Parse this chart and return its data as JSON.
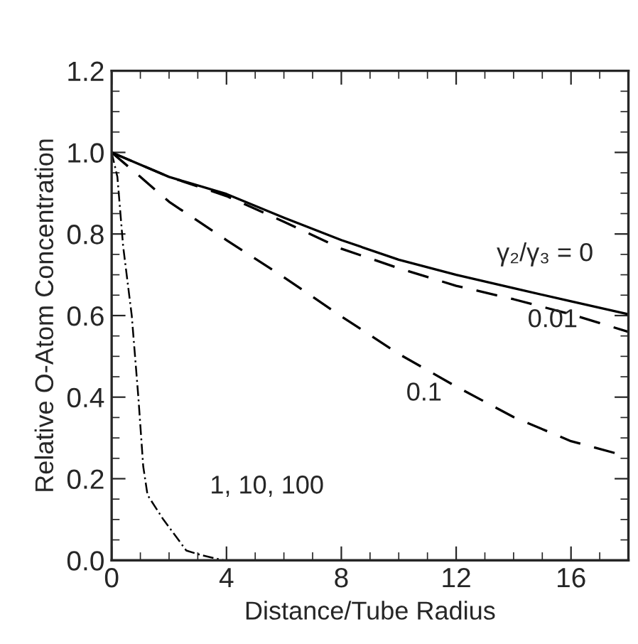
{
  "chart_data": {
    "type": "line",
    "xlabel": "Distance/Tube Radius",
    "ylabel": "Relative O-Atom Concentration",
    "xlim": [
      0,
      18
    ],
    "ylim": [
      0,
      1.2
    ],
    "xticks": [
      0,
      4,
      8,
      12,
      16
    ],
    "yticks": [
      {
        "value": 0,
        "label": "0.0"
      },
      0.2,
      0.4,
      0.6,
      0.8,
      {
        "value": 1,
        "label": "1.0"
      },
      1.2
    ],
    "grid": false,
    "legend": false,
    "series": [
      {
        "name": "γ₂/γ₃ = 0",
        "color": "#000000",
        "line_style": "solid",
        "x": [
          0,
          2,
          4,
          6,
          8,
          10,
          12,
          14,
          16,
          18
        ],
        "values": [
          1.0,
          0.94,
          0.898,
          0.84,
          0.785,
          0.737,
          0.7,
          0.667,
          0.635,
          0.603
        ]
      },
      {
        "name": "0.01",
        "color": "#000000",
        "line_style": "dashed",
        "x": [
          0,
          2,
          4,
          6,
          8,
          10,
          12,
          14,
          16,
          18
        ],
        "values": [
          1.0,
          0.94,
          0.893,
          0.83,
          0.764,
          0.716,
          0.673,
          0.64,
          0.603,
          0.56
        ]
      },
      {
        "name": "0.1",
        "color": "#000000",
        "line_style": "dashed",
        "x": [
          0,
          1,
          2,
          4,
          6,
          8,
          10,
          12,
          14,
          16,
          18
        ],
        "values": [
          1.0,
          0.94,
          0.879,
          0.785,
          0.694,
          0.598,
          0.506,
          0.426,
          0.351,
          0.292,
          0.254
        ]
      },
      {
        "name": "1, 10, 100",
        "color": "#000000",
        "line_style": "dashed",
        "x": [
          0,
          0.2,
          0.4,
          0.7,
          0.93,
          1.1,
          1.25,
          1.8,
          2.6,
          3.1,
          3.9
        ],
        "values": [
          1.0,
          0.94,
          0.77,
          0.6,
          0.4,
          0.23,
          0.16,
          0.1,
          0.024,
          0.013,
          0
        ]
      }
    ]
  }
}
